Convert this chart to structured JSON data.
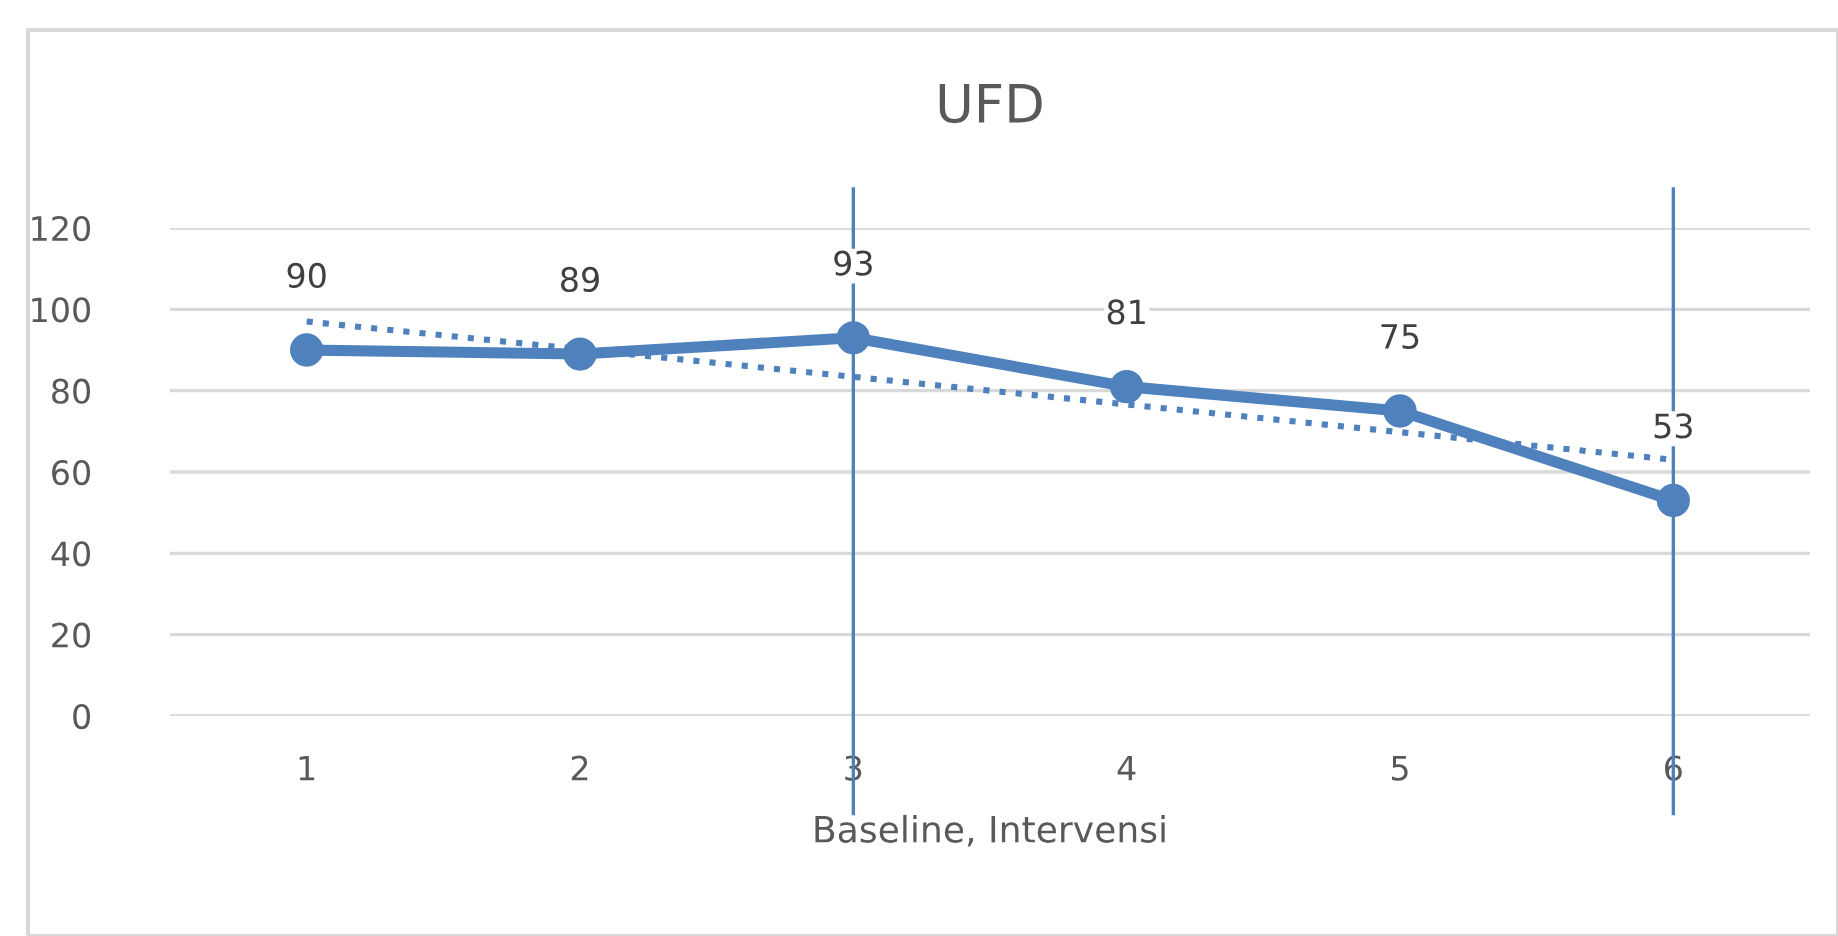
{
  "chart_data": {
    "type": "line",
    "title": "UFD",
    "xlabel": "Baseline, Intervensi",
    "categories": [
      "1",
      "2",
      "3",
      "4",
      "5",
      "6"
    ],
    "series": [
      {
        "color": "#4f81bd",
        "values": [
          90,
          89,
          93,
          81,
          75,
          53
        ],
        "marker": "circle",
        "line_style": "solid",
        "data_labels": true
      },
      {
        "type": "line",
        "color": "#4f81bd",
        "x": [
          "1",
          "6"
        ],
        "values": [
          97,
          63
        ],
        "marker": "none",
        "line_style": "dotted"
      }
    ],
    "ylim": [
      0,
      120
    ],
    "yticks": [
      0,
      20,
      40,
      60,
      80,
      100,
      120
    ],
    "grid": "y",
    "legend": false,
    "ref_lines": [
      {
        "axis": "x",
        "value": "3",
        "color": "#4f81bd"
      },
      {
        "axis": "x",
        "value": "6",
        "color": "#4f81bd"
      }
    ]
  }
}
